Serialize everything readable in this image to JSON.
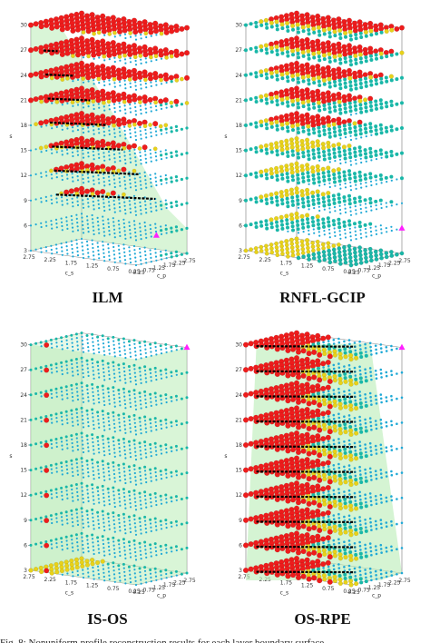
{
  "figure": {
    "caption_fragment": "Fig. 8: Nonuniform profile reconstruction results for each layer boundary surface"
  },
  "colors": {
    "good": "#1fa9d6",
    "mid": "#19b7a8",
    "warn": "#e8d21a",
    "bad": "#ee1c1c",
    "plane": "#b9ecb6",
    "marker": "#ff20ff",
    "ridge": "#000000"
  },
  "axes": {
    "z_ticks": [
      "3",
      "6",
      "9",
      "12",
      "15",
      "18",
      "21",
      "24",
      "27",
      "30"
    ],
    "z_label": "s",
    "x_label": "c_s",
    "y_label": "c_p",
    "left_ticks": [
      "2.75",
      "2.25",
      "1.75",
      "1.25",
      "0.75",
      "0.25"
    ],
    "right_ticks": [
      "0.25",
      "0.75",
      "1.25",
      "1.75",
      "2.25",
      "2.75"
    ]
  },
  "panels": [
    {
      "id": "ilm",
      "title": "ILM"
    },
    {
      "id": "rnfl-gcip",
      "title": "RNFL-GCIP"
    },
    {
      "id": "is-os",
      "title": "IS-OS"
    },
    {
      "id": "os-rpe",
      "title": "OS-RPE"
    }
  ],
  "chart_data": [
    {
      "type": "scatter",
      "title": "ILM",
      "xlabel": "c_s",
      "ylabel": "c_p",
      "zlabel": "s",
      "x_range": [
        0.25,
        2.75
      ],
      "y_range": [
        0.25,
        2.75
      ],
      "z_range": [
        3,
        30
      ],
      "layers": [
        3,
        6,
        9,
        12,
        15,
        18,
        21,
        24,
        27,
        30
      ],
      "description_values": "failure region (red) grows with s; boundary ridge in black",
      "marker_point": {
        "c_s": 0.25,
        "c_p": 1.25,
        "s": 6
      },
      "grid": true
    },
    {
      "type": "scatter",
      "title": "RNFL-GCIP",
      "xlabel": "c_s",
      "ylabel": "c_p",
      "zlabel": "s",
      "x_range": [
        0.25,
        2.75
      ],
      "y_range": [
        0.25,
        2.75
      ],
      "z_range": [
        3,
        30
      ],
      "layers": [
        3,
        6,
        9,
        12,
        15,
        18,
        21,
        24,
        27,
        30
      ],
      "marker_point": {
        "c_s": 0.25,
        "c_p": 2.75,
        "s": 6
      },
      "grid": true
    },
    {
      "type": "scatter",
      "title": "IS-OS",
      "xlabel": "c_s",
      "ylabel": "c_p",
      "zlabel": "s",
      "x_range": [
        0.25,
        2.75
      ],
      "y_range": [
        0.25,
        2.75
      ],
      "z_range": [
        3,
        30
      ],
      "layers": [
        3,
        6,
        9,
        12,
        15,
        18,
        21,
        24,
        27,
        30
      ],
      "marker_point": {
        "c_s": 0.25,
        "c_p": 2.75,
        "s": 30
      },
      "grid": true
    },
    {
      "type": "scatter",
      "title": "OS-RPE",
      "xlabel": "c_s",
      "ylabel": "c_p",
      "zlabel": "s",
      "x_range": [
        0.25,
        2.75
      ],
      "y_range": [
        0.25,
        2.75
      ],
      "z_range": [
        3,
        30
      ],
      "layers": [
        3,
        6,
        9,
        12,
        15,
        18,
        21,
        24,
        27,
        30
      ],
      "marker_point": {
        "c_s": 0.25,
        "c_p": 2.75,
        "s": 30
      },
      "grid": true
    }
  ]
}
